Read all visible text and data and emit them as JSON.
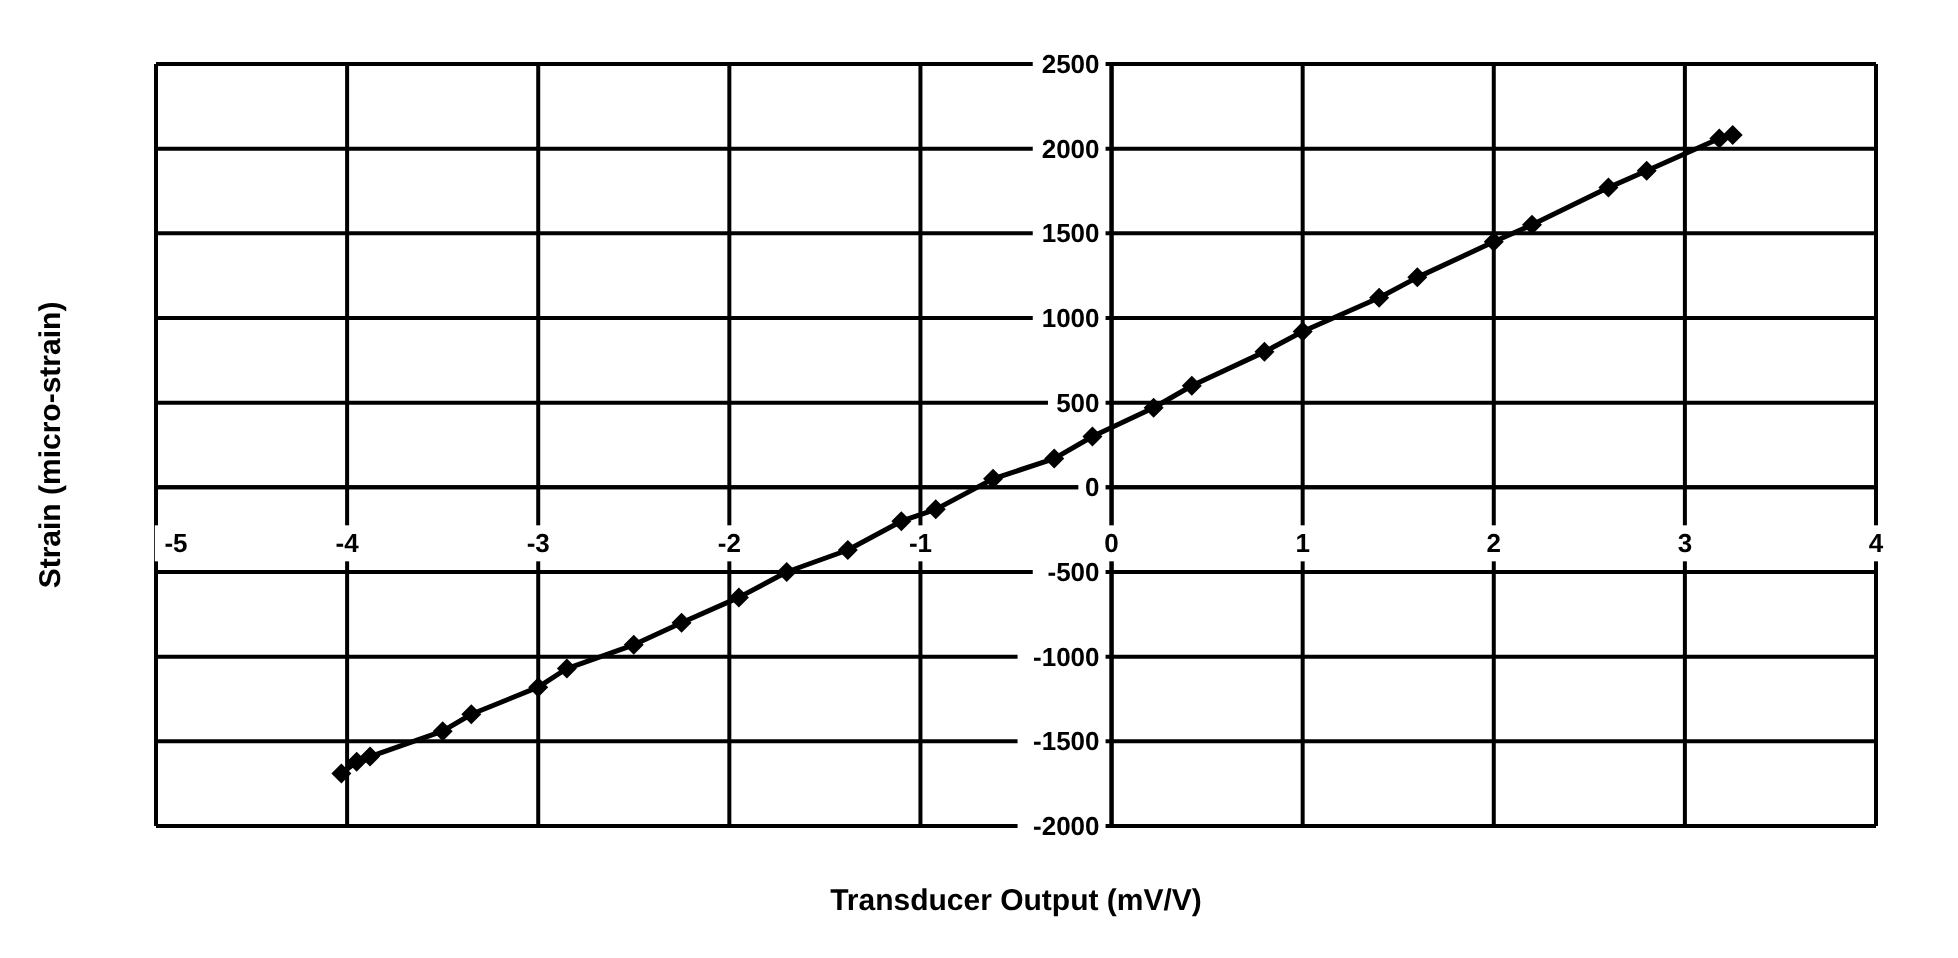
{
  "chart_data": {
    "type": "line",
    "xlabel": "Transducer Output (mV/V)",
    "ylabel": "Strain (micro-strain)",
    "xlim": [
      -5,
      4
    ],
    "xticks": [
      -5,
      -4,
      -3,
      -2,
      -1,
      0,
      1,
      2,
      3,
      4
    ],
    "ylim": [
      -2000,
      2500
    ],
    "yticks": [
      -2000,
      -1500,
      -1000,
      -500,
      0,
      500,
      1000,
      1500,
      2000,
      2500
    ],
    "grid": true,
    "marker": "diamond",
    "line_style": "solid",
    "series": [
      {
        "color": "#000000",
        "x": [
          -4.03,
          -3.95,
          -3.88,
          -3.5,
          -3.35,
          -3.0,
          -2.85,
          -2.5,
          -2.25,
          -1.95,
          -1.7,
          -1.38,
          -1.1,
          -0.92,
          -0.62,
          -0.3,
          -0.1,
          0.22,
          0.42,
          0.8,
          1.0,
          1.4,
          1.6,
          2.0,
          2.2,
          2.6,
          2.8,
          3.18,
          3.25
        ],
        "values": [
          -1690,
          -1620,
          -1590,
          -1440,
          -1340,
          -1180,
          -1070,
          -930,
          -800,
          -650,
          -500,
          -370,
          -200,
          -130,
          50,
          170,
          300,
          470,
          600,
          800,
          920,
          1120,
          1240,
          1450,
          1550,
          1770,
          1870,
          2060,
          2080
        ]
      }
    ]
  }
}
